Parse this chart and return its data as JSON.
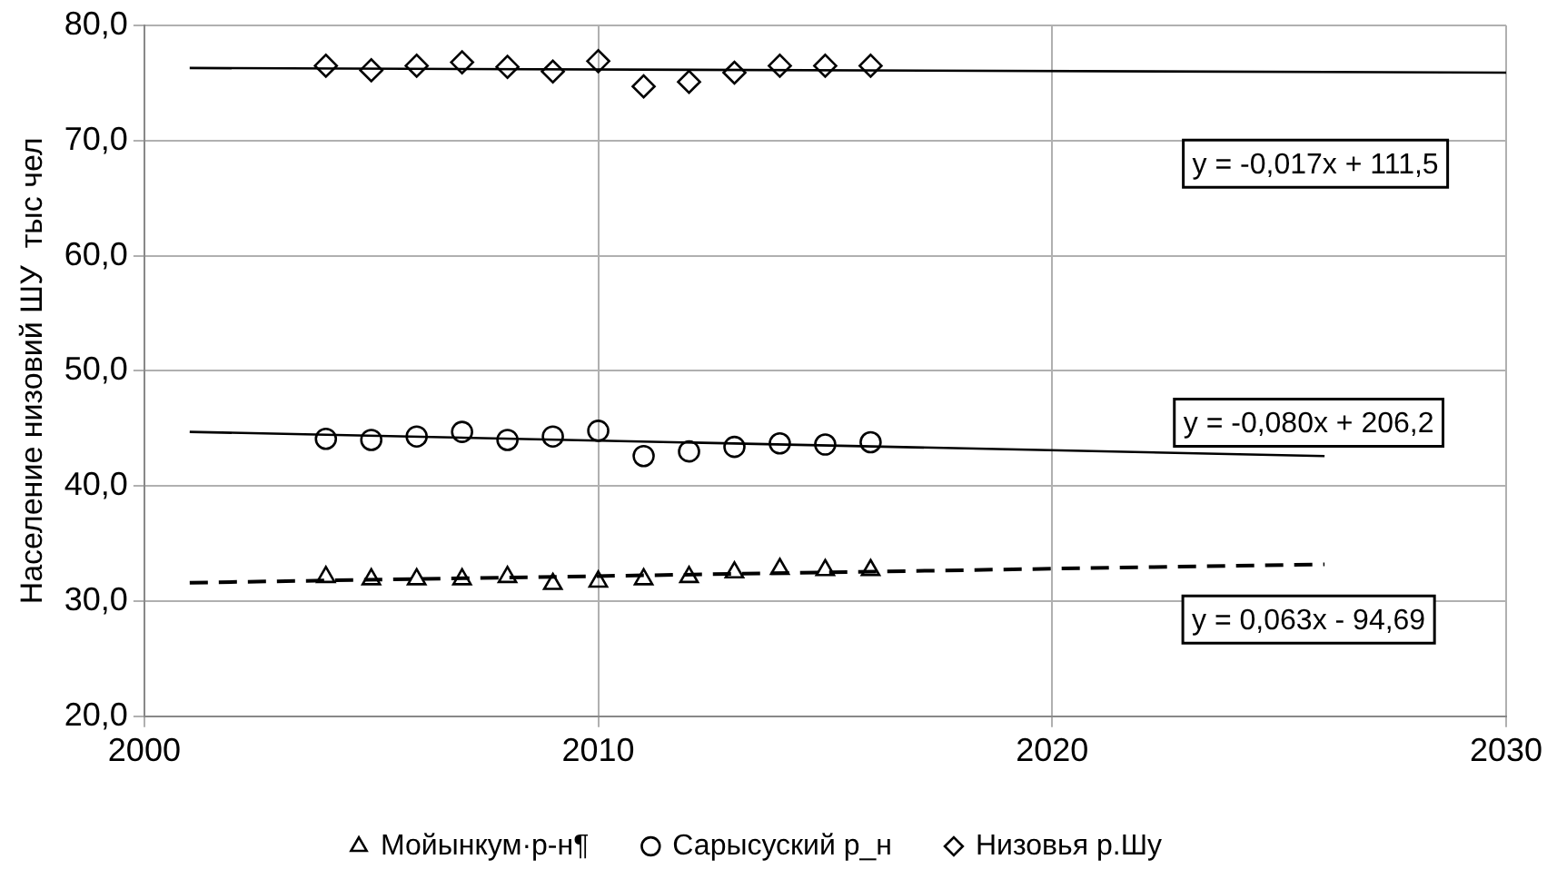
{
  "chart_data": {
    "type": "scatter",
    "ylabel": "Население низовий ШУ  тыс чел",
    "xlim": [
      2000,
      2030
    ],
    "xticks": [
      2000,
      2010,
      2020,
      2030
    ],
    "ylim": [
      20,
      80
    ],
    "yticks": [
      {
        "value": 20,
        "label": "20,0"
      },
      {
        "value": 30,
        "label": "30,0"
      },
      {
        "value": 40,
        "label": "40,0"
      },
      {
        "value": 50,
        "label": "50,0"
      },
      {
        "value": 60,
        "label": "60,0"
      },
      {
        "value": 70,
        "label": "70,0"
      },
      {
        "value": 80,
        "label": "80,0"
      }
    ],
    "grid": true,
    "legend": "bottom",
    "series": [
      {
        "name": "Мойынкум·р-н¶",
        "marker": "triangle",
        "color": "#000000",
        "x": [
          2004,
          2005,
          2006,
          2007,
          2008,
          2009,
          2010,
          2011,
          2012,
          2013,
          2014,
          2015,
          2016
        ],
        "values": [
          32.1,
          31.9,
          31.9,
          31.9,
          32.1,
          31.5,
          31.7,
          31.9,
          32.1,
          32.5,
          32.8,
          32.7,
          32.7
        ]
      },
      {
        "name": "Сарысуский р_н",
        "marker": "circle",
        "color": "#000000",
        "x": [
          2004,
          2005,
          2006,
          2007,
          2008,
          2009,
          2010,
          2011,
          2012,
          2013,
          2014,
          2015,
          2016
        ],
        "values": [
          44.1,
          44.0,
          44.3,
          44.7,
          44.0,
          44.3,
          44.8,
          42.6,
          43.0,
          43.4,
          43.7,
          43.6,
          43.8
        ]
      },
      {
        "name": "Низовья р.Шу",
        "marker": "diamond",
        "color": "#000000",
        "x": [
          2004,
          2005,
          2006,
          2007,
          2008,
          2009,
          2010,
          2011,
          2012,
          2013,
          2014,
          2015,
          2016
        ],
        "values": [
          76.5,
          76.1,
          76.5,
          76.8,
          76.4,
          76.0,
          76.9,
          74.7,
          75.1,
          75.9,
          76.5,
          76.5,
          76.5
        ]
      },
      {
        "type": "line",
        "line_style": "dashed",
        "color": "#000000",
        "x": [
          2001,
          2026
        ],
        "values": [
          31.6,
          33.2
        ]
      },
      {
        "type": "line",
        "line_style": "solid",
        "color": "#000000",
        "x": [
          2001,
          2026
        ],
        "values": [
          44.7,
          42.6
        ]
      },
      {
        "type": "line",
        "line_style": "solid",
        "color": "#000000",
        "x": [
          2001,
          2030
        ],
        "values": [
          76.3,
          75.9
        ]
      }
    ],
    "annotations": [
      "y = -0,017x + 111,5",
      "y = -0,080x + 206,2",
      "y = 0,063x - 94,69"
    ]
  }
}
